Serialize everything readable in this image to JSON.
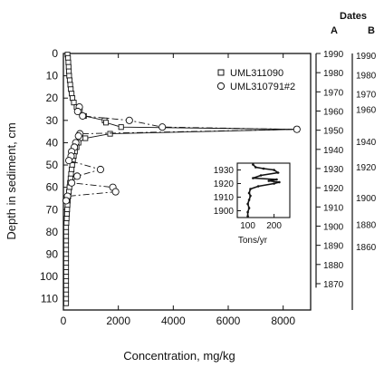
{
  "chart_data": [
    {
      "type": "scatter",
      "xlabel": "Concentration, mg/kg",
      "ylabel": "Depth in sediment, cm",
      "xlim": [
        0,
        9000
      ],
      "ylim": [
        0,
        115
      ],
      "y_inverted": true,
      "x_ticks": [
        0,
        2000,
        4000,
        6000,
        8000
      ],
      "y_ticks": [
        0,
        10,
        20,
        30,
        40,
        50,
        60,
        70,
        80,
        90,
        100,
        110
      ],
      "grid": false,
      "legend_position": "top-right",
      "series": [
        {
          "name": "UML311090",
          "marker": "square",
          "line": "solid",
          "points": [
            [
              150,
              0.5
            ],
            [
              170,
              2
            ],
            [
              180,
              4
            ],
            [
              190,
              6
            ],
            [
              200,
              8
            ],
            [
              210,
              10
            ],
            [
              230,
              12
            ],
            [
              250,
              14
            ],
            [
              270,
              16
            ],
            [
              300,
              18
            ],
            [
              330,
              20
            ],
            [
              380,
              22
            ],
            [
              480,
              24
            ],
            [
              600,
              26
            ],
            [
              750,
              28
            ],
            [
              1500,
              30
            ],
            [
              1550,
              31
            ],
            [
              2100,
              33
            ],
            [
              8500,
              34
            ],
            [
              1700,
              36
            ],
            [
              800,
              38
            ],
            [
              550,
              40
            ],
            [
              480,
              42
            ],
            [
              420,
              44
            ],
            [
              380,
              46
            ],
            [
              350,
              48
            ],
            [
              320,
              50
            ],
            [
              300,
              52
            ],
            [
              280,
              54
            ],
            [
              260,
              56
            ],
            [
              240,
              58
            ],
            [
              220,
              60
            ],
            [
              200,
              62
            ],
            [
              180,
              64
            ],
            [
              160,
              66
            ],
            [
              150,
              68
            ],
            [
              140,
              70
            ],
            [
              130,
              72
            ],
            [
              120,
              74
            ],
            [
              110,
              76
            ],
            [
              100,
              78
            ],
            [
              100,
              80
            ],
            [
              100,
              82
            ],
            [
              100,
              84
            ],
            [
              100,
              86
            ],
            [
              100,
              88
            ],
            [
              100,
              90
            ],
            [
              100,
              92
            ],
            [
              100,
              94
            ],
            [
              100,
              96
            ],
            [
              100,
              98
            ],
            [
              100,
              100
            ],
            [
              100,
              102
            ],
            [
              100,
              104
            ],
            [
              100,
              106
            ],
            [
              100,
              108
            ],
            [
              100,
              110
            ],
            [
              100,
              112
            ]
          ]
        },
        {
          "name": "UML310791#2",
          "marker": "circle",
          "line": "dash-dot",
          "points": [
            [
              580,
              24
            ],
            [
              520,
              26
            ],
            [
              700,
              28
            ],
            [
              2400,
              30
            ],
            [
              3600,
              33
            ],
            [
              8500,
              34
            ],
            [
              600,
              36
            ],
            [
              550,
              37
            ],
            [
              450,
              40
            ],
            [
              400,
              42
            ],
            [
              300,
              44
            ],
            [
              280,
              46
            ],
            [
              200,
              48
            ],
            [
              1350,
              52
            ],
            [
              500,
              55
            ],
            [
              300,
              58
            ],
            [
              1800,
              60
            ],
            [
              1900,
              62
            ],
            [
              150,
              64
            ],
            [
              100,
              66
            ]
          ]
        }
      ],
      "date_scales": {
        "header": "Dates",
        "scale_a": {
          "label": "A",
          "tick_years": [
            1990,
            1980,
            1970,
            1960,
            1950,
            1940,
            1930,
            1920,
            1910,
            1900,
            1890,
            1880,
            1870
          ],
          "tick_depths": [
            0,
            8.6,
            17.2,
            25.8,
            34.4,
            43,
            51.6,
            60.2,
            68.8,
            77.4,
            86,
            94.6,
            103.2
          ]
        },
        "scale_b": {
          "label": "B",
          "tick_years": [
            1990,
            1980,
            1970,
            1960,
            1940,
            1920,
            1900,
            1880,
            1860
          ],
          "tick_depths": [
            0.8,
            9.5,
            18,
            25,
            39.5,
            50.8,
            64.7,
            76.5,
            86.5
          ]
        }
      }
    },
    {
      "type": "line",
      "xlabel": "Tons/yr",
      "ylabel": "",
      "xlim": [
        60,
        260
      ],
      "ylim": [
        1895,
        1935
      ],
      "x_ticks": [
        100,
        200
      ],
      "y_ticks": [
        1900,
        1910,
        1920,
        1930
      ],
      "series": [
        {
          "name": "",
          "points": [
            [
              120,
              1934
            ],
            [
              130,
              1932
            ],
            [
              160,
              1931
            ],
            [
              200,
              1930
            ],
            [
              215,
              1928
            ],
            [
              150,
              1926
            ],
            [
              120,
              1924
            ],
            [
              210,
              1923
            ],
            [
              180,
              1922
            ],
            [
              220,
              1921
            ],
            [
              200,
              1920
            ],
            [
              140,
              1918
            ],
            [
              110,
              1916
            ],
            [
              105,
              1913
            ],
            [
              110,
              1911
            ],
            [
              105,
              1908
            ],
            [
              100,
              1905
            ],
            [
              105,
              1902
            ],
            [
              100,
              1899
            ],
            [
              100,
              1896
            ]
          ]
        }
      ]
    }
  ]
}
